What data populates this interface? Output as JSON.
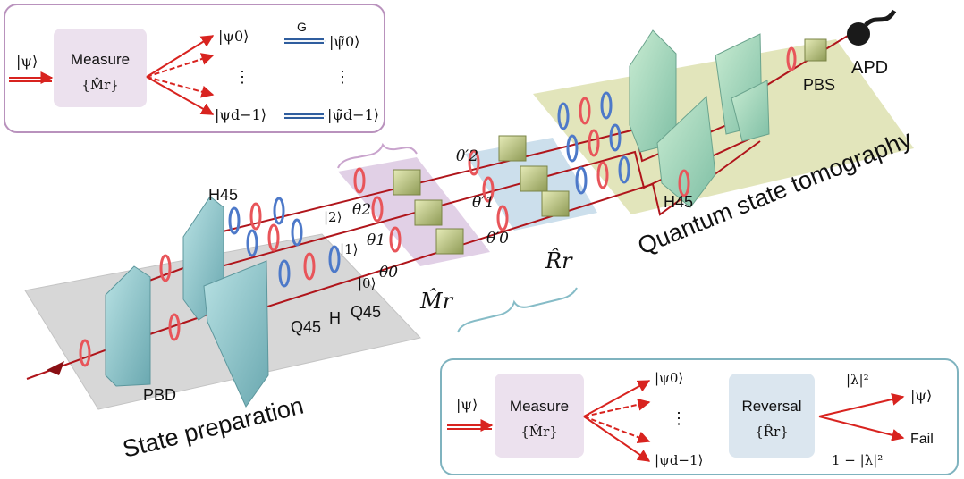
{
  "colors": {
    "beam": "#b0151b",
    "arrow_red": "#d8231f",
    "arrow_blue": "#2f5d9e",
    "top_box_border": "#b992bd",
    "bottom_box_border": "#7fb3bf",
    "measure_fill": "#ece1ee",
    "reversal_fill": "#dbe6ef",
    "prep_platform": "#d7d7d7",
    "tomo_platform": "#dfe2b4",
    "measure_platform": "#dcc8e2",
    "reversal_platform": "#c7dcea",
    "prism": "#8ec7cc",
    "waveplate_red": "#e8555a",
    "waveplate_blue": "#4d79c9"
  },
  "top_box": {
    "input_label": "|ψ⟩",
    "measure_title": "Measure",
    "measure_operator": "{M̂r}",
    "outputs": [
      "|ψ0⟩",
      "⋮",
      "|ψd−1⟩"
    ],
    "gate_label": "G",
    "transformed": [
      "|ψ̃0⟩",
      "⋮",
      "|ψ̃d−1⟩"
    ]
  },
  "bottom_box": {
    "input_label": "|ψ⟩",
    "measure_title": "Measure",
    "measure_operator": "{M̂r}",
    "outputs": [
      "|ψ0⟩",
      "⋮",
      "|ψd−1⟩"
    ],
    "reversal_title": "Reversal",
    "reversal_operator": "{R̂r}",
    "success_prob": "|λ|²",
    "success_state": "|ψ⟩",
    "fail_prob": "1 − |λ|²",
    "fail_label": "Fail"
  },
  "setup": {
    "sections": {
      "preparation": "State preparation",
      "tomography": "Quantum state tomography"
    },
    "components": {
      "pbd": "PBD",
      "pbs": "PBS",
      "apd": "APD",
      "h45_left": "H45",
      "h45_right": "H45",
      "q45_a": "Q45",
      "h": "H",
      "q45_b": "Q45"
    },
    "kets": [
      "|2⟩",
      "|1⟩",
      "|0⟩"
    ],
    "thetas": [
      "θ2",
      "θ1",
      "θ0"
    ],
    "theta_primes": [
      "θ′2",
      "θ′1",
      "θ′0"
    ],
    "measure_operator": "M̂r",
    "reversal_operator": "R̂r"
  }
}
